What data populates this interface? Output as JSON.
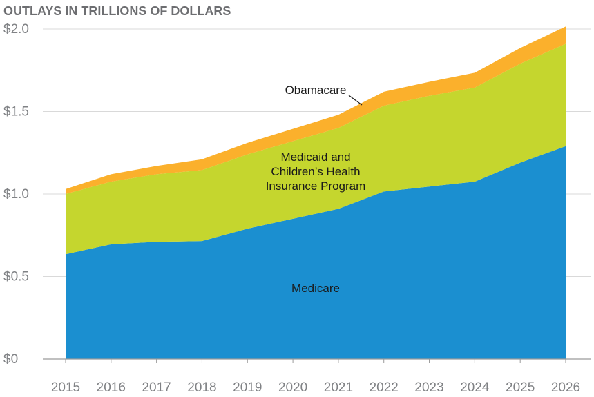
{
  "chart_data": {
    "type": "area",
    "stacked": true,
    "title": "OUTLAYS IN TRILLIONS OF DOLLARS",
    "x": [
      2015,
      2016,
      2017,
      2018,
      2019,
      2020,
      2021,
      2022,
      2023,
      2024,
      2025,
      2026
    ],
    "ylim": [
      0,
      2.0
    ],
    "y_ticks": [
      {
        "value": 0,
        "label": "$0"
      },
      {
        "value": 0.5,
        "label": "$0.5"
      },
      {
        "value": 1.0,
        "label": "$1.0"
      },
      {
        "value": 1.5,
        "label": "$1.5"
      },
      {
        "value": 2.0,
        "label": "$2.0"
      }
    ],
    "grid": true,
    "series": [
      {
        "key": "medicare",
        "name": "Medicare",
        "color": "#1b8fd0",
        "values": [
          0.635,
          0.695,
          0.71,
          0.715,
          0.79,
          0.85,
          0.91,
          1.015,
          1.045,
          1.075,
          1.19,
          1.29
        ]
      },
      {
        "key": "medicaid",
        "name": "Medicaid and Children’s Health Insurance Program",
        "name_lines": [
          "Medicaid and",
          "Children’s Health",
          "Insurance Program"
        ],
        "color": "#c5d62e",
        "values": [
          0.365,
          0.38,
          0.41,
          0.43,
          0.45,
          0.47,
          0.49,
          0.52,
          0.55,
          0.57,
          0.6,
          0.62
        ]
      },
      {
        "key": "obamacare",
        "name": "Obamacare",
        "color": "#fbb02c",
        "values": [
          0.03,
          0.045,
          0.05,
          0.065,
          0.07,
          0.075,
          0.08,
          0.085,
          0.085,
          0.09,
          0.095,
          0.105
        ]
      }
    ]
  }
}
